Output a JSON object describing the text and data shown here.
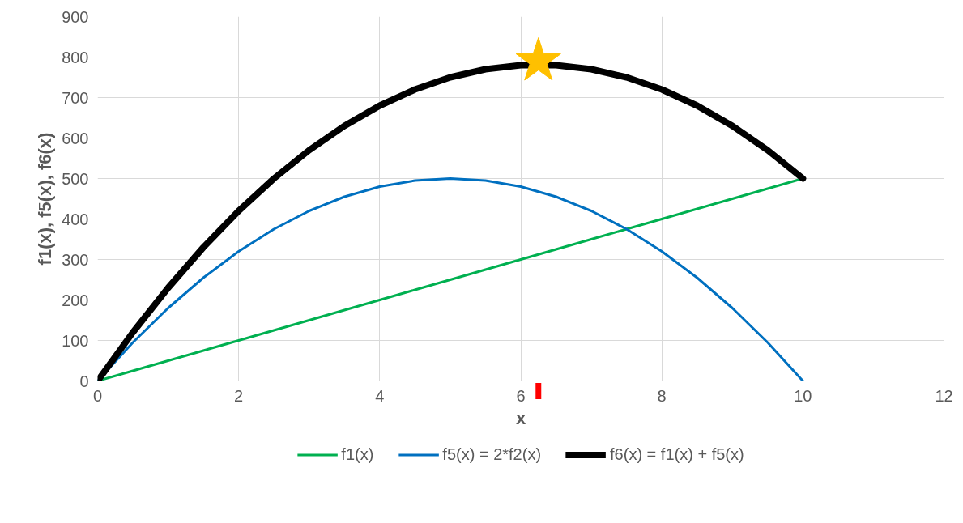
{
  "chart_data": {
    "type": "line",
    "xlabel": "x",
    "ylabel": "f1(x), f5(x), f6(x)",
    "x": [
      0,
      0.5,
      1,
      1.5,
      2,
      2.5,
      3,
      3.5,
      4,
      4.5,
      5,
      5.5,
      6,
      6.5,
      7,
      7.5,
      8,
      8.5,
      9,
      9.5,
      10
    ],
    "series": [
      {
        "name": "f1(x)",
        "color": "#00b050",
        "values": [
          0,
          25,
          50,
          75,
          100,
          125,
          150,
          175,
          200,
          225,
          250,
          275,
          300,
          325,
          350,
          375,
          400,
          425,
          450,
          475,
          500
        ]
      },
      {
        "name": "f5(x) = 2*f2(x)",
        "color": "#0070c0",
        "values": [
          0,
          95,
          180,
          255,
          320,
          375,
          420,
          455,
          480,
          495,
          500,
          495,
          480,
          455,
          420,
          375,
          320,
          255,
          180,
          95,
          0
        ]
      },
      {
        "name": "f6(x) = f1(x) + f5(x)",
        "color": "#000000",
        "values": [
          0,
          120,
          230,
          330,
          420,
          500,
          570,
          630,
          680,
          720,
          750,
          770,
          780,
          780,
          770,
          750,
          720,
          680,
          630,
          570,
          500
        ]
      },
      {
        "type": "scatter",
        "marker": "star",
        "color": "#ffc000",
        "x": [
          6.25
        ],
        "values": [
          790
        ]
      }
    ],
    "xlim": [
      0,
      12
    ],
    "xticks": [
      0,
      2,
      4,
      6,
      8,
      10,
      12
    ],
    "ylim": [
      0,
      900
    ],
    "yticks": [
      0,
      100,
      200,
      300,
      400,
      500,
      600,
      700,
      800,
      900
    ],
    "grid": true,
    "legend": "bottom"
  }
}
